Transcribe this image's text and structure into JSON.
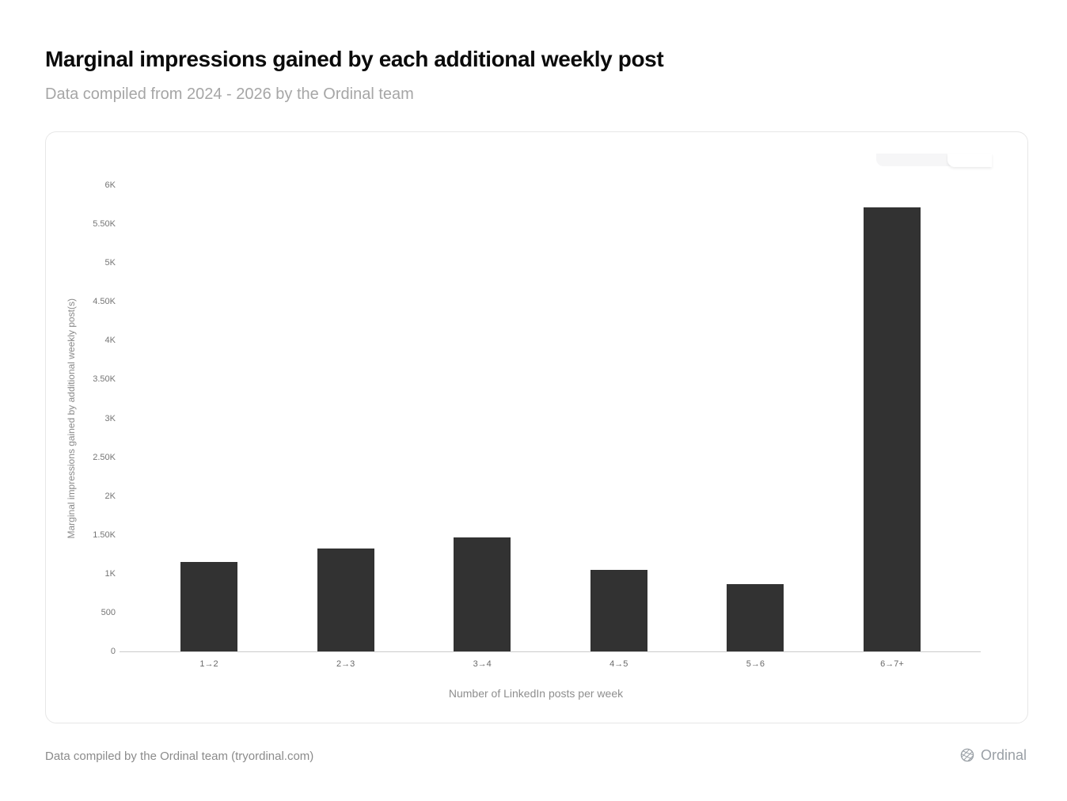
{
  "page": {
    "background": "#ffffff"
  },
  "header": {
    "title": "Marginal impressions gained by each additional weekly post",
    "subtitle": "Data compiled from 2024 - 2026 by the Ordinal team"
  },
  "chart_data": {
    "type": "bar",
    "title": "Marginal impressions gained by each additional weekly post",
    "categories": [
      "1→2",
      "2→3",
      "3→4",
      "4→5",
      "5→6",
      "6→7+"
    ],
    "values": [
      1150,
      1320,
      1470,
      1050,
      870,
      5710
    ],
    "xlabel": "Number of LinkedIn posts per week",
    "ylabel": "Marginal impressions gained by additional weekly post(s)",
    "ylim": [
      0,
      6000
    ],
    "y_ticks": {
      "labels": [
        "0",
        "500",
        "1K",
        "1.50K",
        "2K",
        "2.50K",
        "3K",
        "3.50K",
        "4K",
        "4.50K",
        "5K",
        "5.50K",
        "6K"
      ],
      "values": [
        0,
        500,
        1000,
        1500,
        2000,
        2500,
        3000,
        3500,
        4000,
        4500,
        5000,
        5500,
        6000
      ]
    },
    "grid": false,
    "legend": false,
    "bar_color": "#323232",
    "axis_color": "#cccccc"
  },
  "footer": {
    "attribution": "Data compiled by the Ordinal team (tryordinal.com)",
    "brand_name": "Ordinal",
    "brand_icon": "hatched-sphere-icon"
  }
}
